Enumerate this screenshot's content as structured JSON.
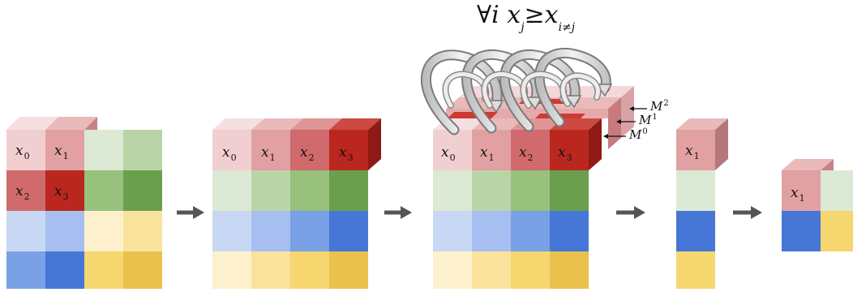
{
  "formula": {
    "forall": "∀",
    "i": "i",
    "x": "x",
    "j": "j",
    "geq": "≥",
    "x2": "x",
    "inej": "i≠j"
  },
  "labels": {
    "x0": {
      "base": "x",
      "sub": "0"
    },
    "x1": {
      "base": "x",
      "sub": "1"
    },
    "x2": {
      "base": "x",
      "sub": "2"
    },
    "x3": {
      "base": "x",
      "sub": "3"
    }
  },
  "mask_labels": [
    {
      "base": "M",
      "sub": "2"
    },
    {
      "base": "M",
      "sub": "1"
    },
    {
      "base": "M",
      "sub": "0"
    }
  ],
  "colors": {
    "red": [
      "#f1cfd0",
      "#e1a0a2",
      "#d16a6c",
      "#b9271f"
    ],
    "green": [
      "#dce9d4",
      "#b9d5a8",
      "#97c17c",
      "#6b9f4e"
    ],
    "blue": [
      "#c8d8f4",
      "#a6bff0",
      "#7aa0e6",
      "#4677d6"
    ],
    "yellow": [
      "#fdf0cc",
      "#f9e39c",
      "#f6d66e",
      "#e8c24c"
    ],
    "arrow": "#555555"
  }
}
